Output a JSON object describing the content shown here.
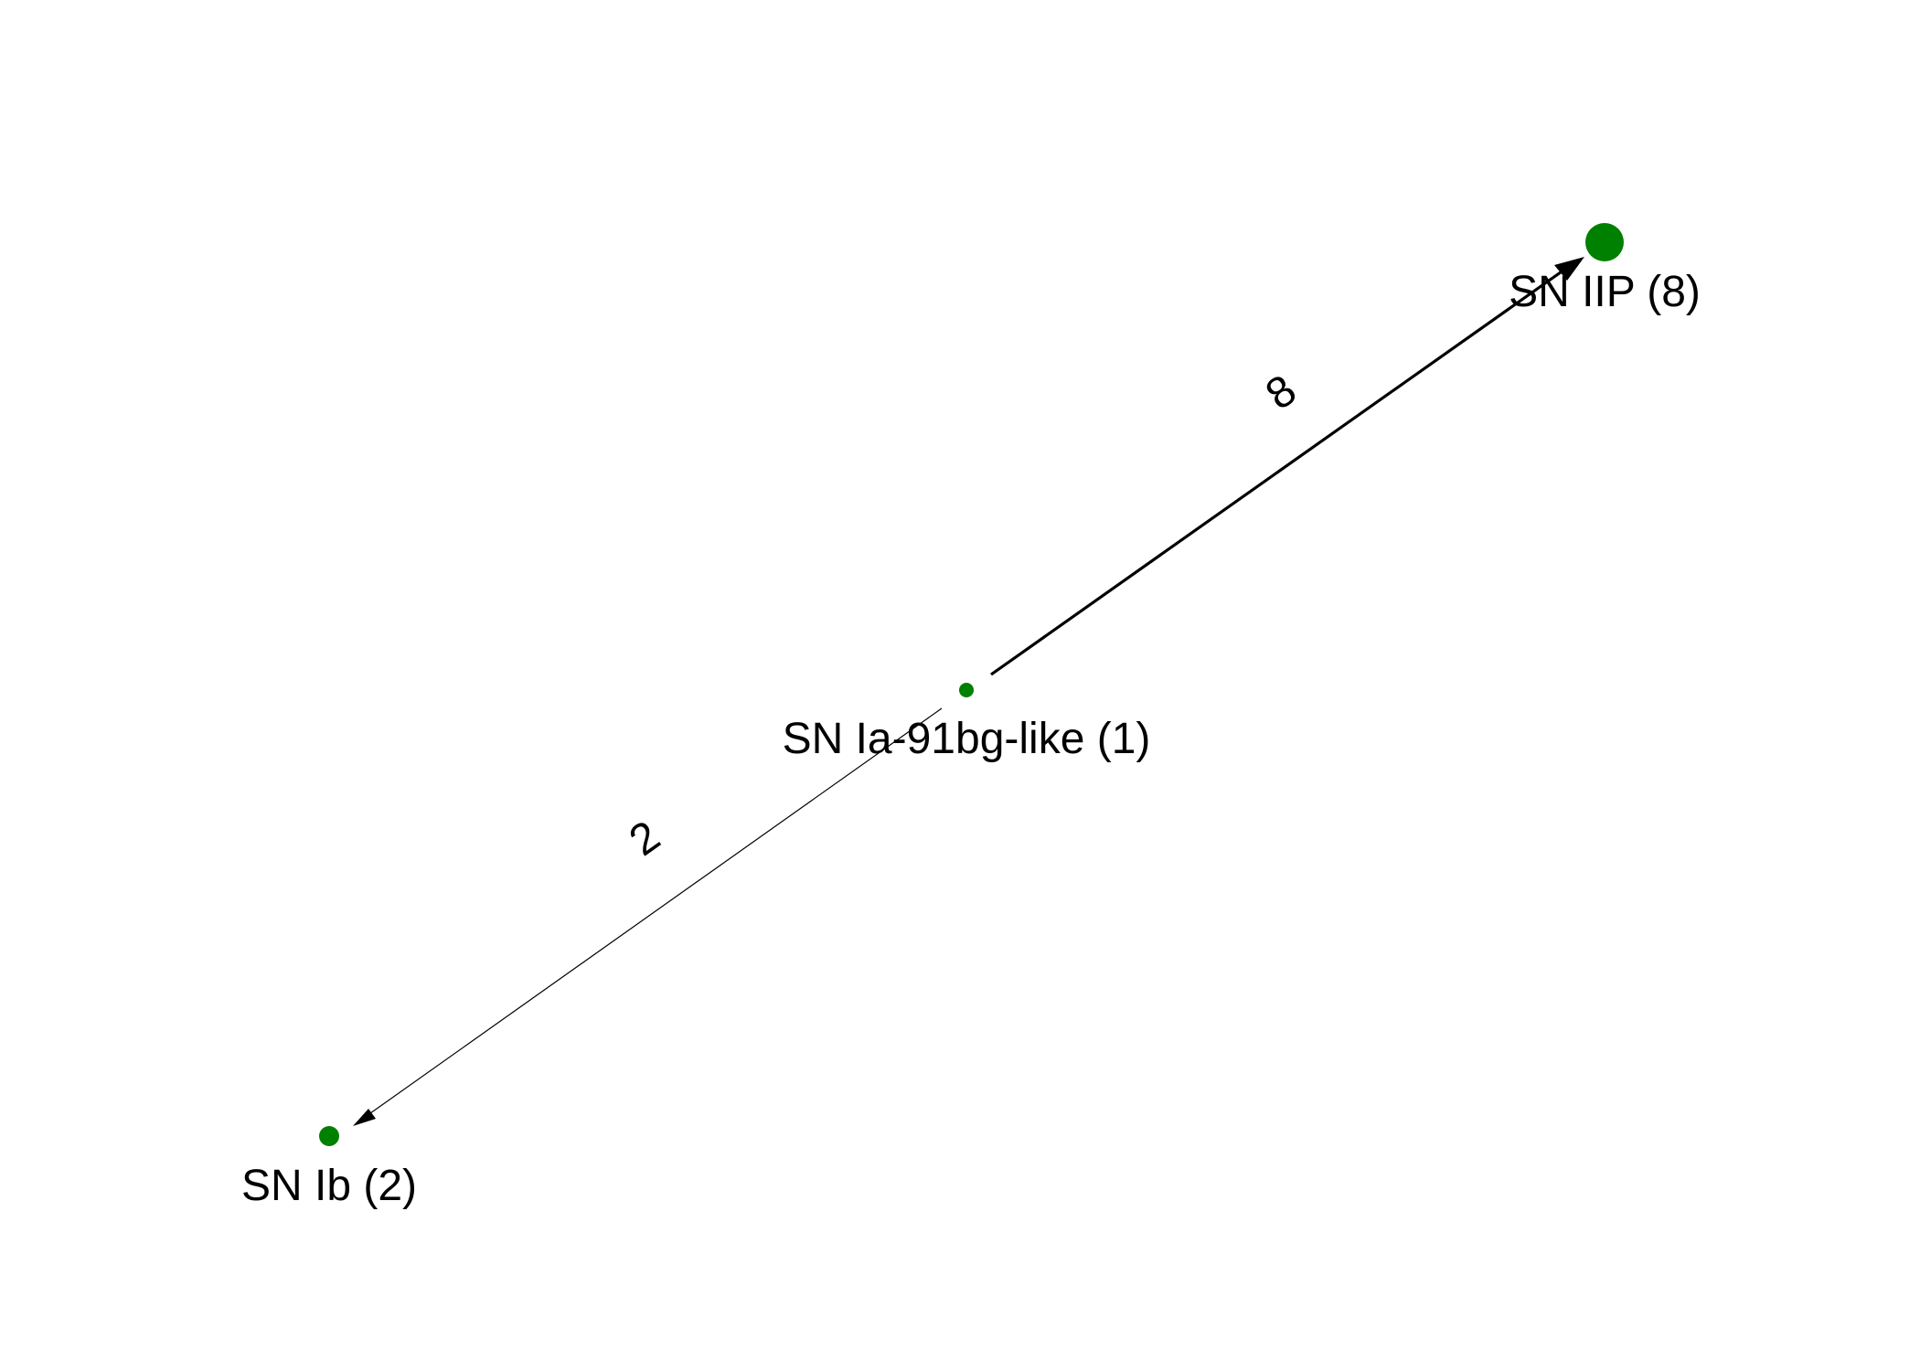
{
  "colors": {
    "node": "#008000",
    "edge": "#000000",
    "background": "#ffffff"
  },
  "nodes": [
    {
      "id": "ia91bg",
      "label": "SN Ia-91bg-like (1)",
      "count": 1
    },
    {
      "id": "iip",
      "label": "SN IIP (8)",
      "count": 8
    },
    {
      "id": "ib",
      "label": "SN Ib (2)",
      "count": 2
    }
  ],
  "edges": [
    {
      "from": "ia91bg",
      "to": "iip",
      "label": "8",
      "weight": 8
    },
    {
      "from": "ia91bg",
      "to": "ib",
      "label": "2",
      "weight": 2
    }
  ]
}
